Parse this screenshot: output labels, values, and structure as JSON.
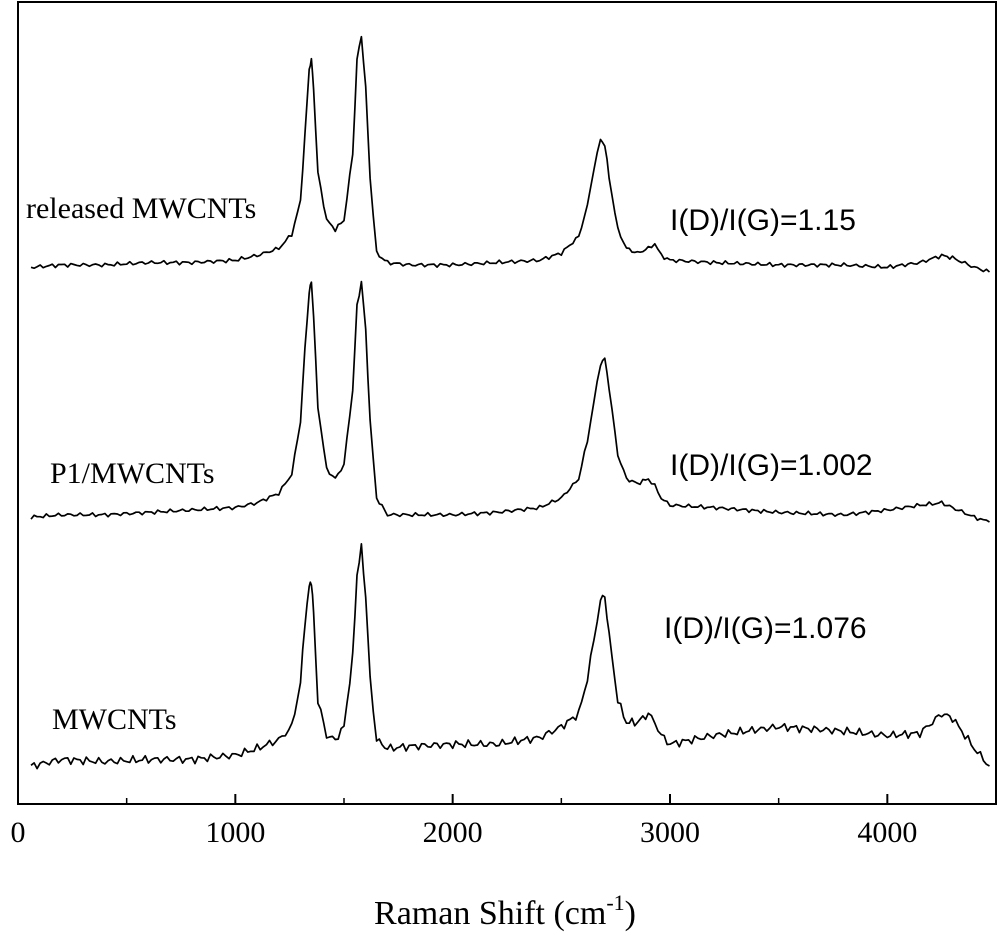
{
  "chart_data": {
    "type": "line",
    "title": "",
    "xlabel": "Raman Shift (cm",
    "xlabel_sup": "-1",
    "xlabel_close": ")",
    "ylabel": "",
    "xlim": [
      0,
      4500
    ],
    "xticks": [
      0,
      1000,
      2000,
      3000,
      4000
    ],
    "grid": false,
    "stacked_offset": true,
    "series": [
      {
        "name": "released MWCNTs",
        "annotation": "I(D)/I(G)=1.15",
        "x": [
          60,
          200,
          400,
          600,
          800,
          1000,
          1100,
          1200,
          1260,
          1300,
          1320,
          1340,
          1350,
          1360,
          1380,
          1420,
          1460,
          1500,
          1540,
          1560,
          1580,
          1600,
          1620,
          1650,
          1700,
          1800,
          2000,
          2200,
          2400,
          2500,
          2580,
          2620,
          2650,
          2680,
          2700,
          2720,
          2760,
          2800,
          2850,
          2900,
          2930,
          2960,
          3000,
          3200,
          3500,
          3800,
          4000,
          4150,
          4250,
          4300,
          4400,
          4470
        ],
        "y": [
          0.02,
          0.03,
          0.03,
          0.04,
          0.04,
          0.05,
          0.07,
          0.1,
          0.16,
          0.3,
          0.58,
          0.86,
          0.9,
          0.78,
          0.42,
          0.22,
          0.18,
          0.22,
          0.5,
          0.9,
          1.0,
          0.78,
          0.4,
          0.08,
          0.04,
          0.03,
          0.03,
          0.04,
          0.05,
          0.08,
          0.15,
          0.28,
          0.44,
          0.56,
          0.54,
          0.4,
          0.18,
          0.1,
          0.08,
          0.1,
          0.12,
          0.07,
          0.05,
          0.04,
          0.03,
          0.03,
          0.02,
          0.04,
          0.07,
          0.06,
          0.02,
          0.0
        ]
      },
      {
        "name": "P1/MWCNTs",
        "annotation": "I(D)/I(G)=1.002",
        "x": [
          60,
          200,
          400,
          600,
          800,
          1000,
          1100,
          1200,
          1260,
          1300,
          1320,
          1340,
          1350,
          1360,
          1380,
          1420,
          1460,
          1500,
          1540,
          1560,
          1580,
          1600,
          1620,
          1650,
          1700,
          1800,
          2000,
          2200,
          2400,
          2500,
          2580,
          2620,
          2650,
          2680,
          2700,
          2720,
          2760,
          2800,
          2850,
          2900,
          2930,
          2960,
          3000,
          3200,
          3500,
          3800,
          4000,
          4150,
          4250,
          4300,
          4400,
          4470
        ],
        "y": [
          0.02,
          0.03,
          0.03,
          0.04,
          0.05,
          0.06,
          0.08,
          0.12,
          0.2,
          0.42,
          0.72,
          0.96,
          1.0,
          0.86,
          0.48,
          0.22,
          0.18,
          0.24,
          0.55,
          0.9,
          1.0,
          0.8,
          0.42,
          0.1,
          0.03,
          0.03,
          0.03,
          0.04,
          0.06,
          0.1,
          0.18,
          0.34,
          0.5,
          0.66,
          0.68,
          0.56,
          0.28,
          0.18,
          0.16,
          0.18,
          0.15,
          0.1,
          0.07,
          0.06,
          0.04,
          0.03,
          0.05,
          0.07,
          0.08,
          0.06,
          0.02,
          0.0
        ]
      },
      {
        "name": "MWCNTs",
        "annotation": "I(D)/I(G)=1.076",
        "x": [
          60,
          200,
          400,
          600,
          800,
          1000,
          1100,
          1200,
          1260,
          1300,
          1320,
          1340,
          1350,
          1360,
          1380,
          1420,
          1460,
          1500,
          1540,
          1560,
          1580,
          1600,
          1620,
          1650,
          1700,
          1800,
          2000,
          2200,
          2400,
          2500,
          2580,
          2620,
          2650,
          2680,
          2700,
          2720,
          2760,
          2800,
          2850,
          2900,
          2930,
          2960,
          3000,
          3200,
          3500,
          3800,
          4000,
          4150,
          4250,
          4300,
          4400,
          4470
        ],
        "y": [
          0.0,
          0.03,
          0.02,
          0.03,
          0.03,
          0.05,
          0.08,
          0.12,
          0.18,
          0.38,
          0.66,
          0.82,
          0.85,
          0.7,
          0.3,
          0.14,
          0.12,
          0.18,
          0.5,
          0.88,
          1.0,
          0.78,
          0.4,
          0.12,
          0.08,
          0.09,
          0.1,
          0.1,
          0.13,
          0.18,
          0.24,
          0.4,
          0.58,
          0.76,
          0.78,
          0.6,
          0.3,
          0.2,
          0.2,
          0.24,
          0.2,
          0.14,
          0.1,
          0.14,
          0.18,
          0.16,
          0.14,
          0.15,
          0.24,
          0.22,
          0.08,
          0.0
        ]
      }
    ]
  }
}
